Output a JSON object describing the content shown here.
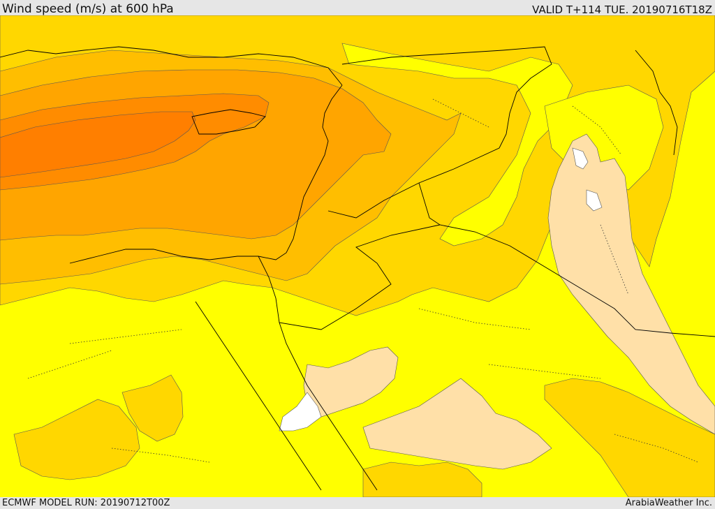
{
  "header": {
    "title": "Wind speed (m/s) at 600 hPa",
    "valid": "VALID T+114 TUE. 20190716T18Z"
  },
  "footer": {
    "model_run": "ECMWF MODEL RUN: 20190712T00Z",
    "credit": "ArabiaWeather Inc."
  },
  "map": {
    "field": "wind-speed",
    "region": "eastern-mediterranean-middle-east",
    "colors": {
      "ocean_land_base": "#ffff00",
      "band_1": "#ffd700",
      "band_2": "#ffbe00",
      "band_3": "#ffa500",
      "band_4": "#ff8c00",
      "band_5": "#ff7f00",
      "calm_low": "#ffe0a8",
      "calm_lowest": "#ffffff",
      "coastline": "#000000",
      "border": "#000000"
    }
  }
}
